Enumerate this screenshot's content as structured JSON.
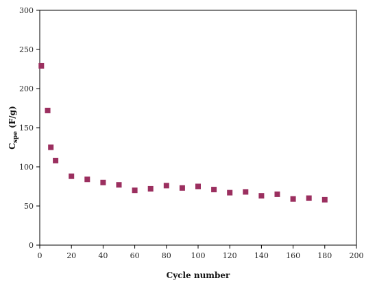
{
  "chart_data": {
    "type": "scatter",
    "xlabel": "Cycle number",
    "ylabel": {
      "main": "C",
      "sub": "spe",
      "rest": " (F/g)"
    },
    "xlim": [
      0,
      200
    ],
    "ylim": [
      0,
      300
    ],
    "xticks": [
      0,
      20,
      40,
      60,
      80,
      100,
      120,
      140,
      160,
      180,
      200
    ],
    "yticks": [
      0,
      50,
      100,
      150,
      200,
      250,
      300
    ],
    "grid": false,
    "marker_color": "#9b2f5f",
    "series": [
      {
        "x": [
          1,
          5,
          7,
          10,
          20,
          30,
          40,
          50,
          60,
          70,
          80,
          90,
          100,
          110,
          120,
          130,
          140,
          150,
          160,
          170,
          180
        ],
        "y": [
          229,
          172,
          125,
          108,
          88,
          84,
          80,
          77,
          70,
          72,
          76,
          73,
          75,
          71,
          67,
          68,
          63,
          65,
          59,
          60,
          58
        ]
      }
    ]
  }
}
